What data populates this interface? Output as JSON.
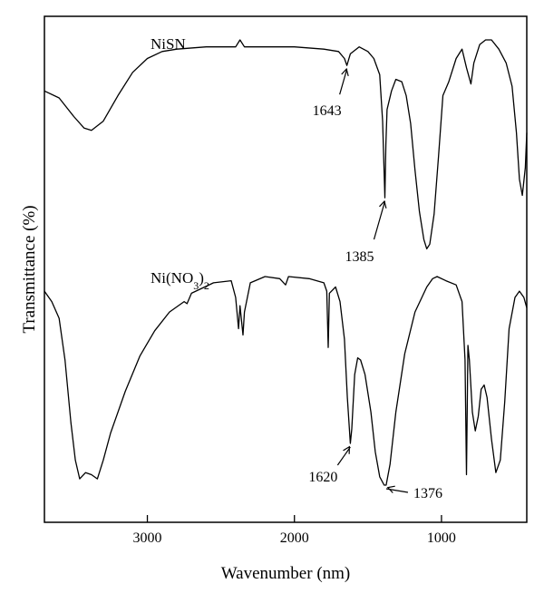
{
  "chart_data": {
    "type": "line",
    "xlabel": "Wavenumber (nm)",
    "ylabel": "Transmittance (%)",
    "xlim": [
      3700,
      420
    ],
    "x_reversed": true,
    "y_ticks_shown": false,
    "x_ticks": [
      3000,
      2000,
      1000
    ],
    "x_tick_labels": [
      "3000",
      "2000",
      "1000"
    ],
    "series": [
      {
        "name": "NiSN",
        "points": [
          [
            3700,
            0.78
          ],
          [
            3600,
            0.75
          ],
          [
            3500,
            0.67
          ],
          [
            3430,
            0.62
          ],
          [
            3380,
            0.61
          ],
          [
            3300,
            0.65
          ],
          [
            3200,
            0.76
          ],
          [
            3100,
            0.86
          ],
          [
            3000,
            0.92
          ],
          [
            2900,
            0.95
          ],
          [
            2800,
            0.96
          ],
          [
            2600,
            0.97
          ],
          [
            2400,
            0.97
          ],
          [
            2370,
            1.0
          ],
          [
            2340,
            0.97
          ],
          [
            2200,
            0.97
          ],
          [
            2000,
            0.97
          ],
          [
            1800,
            0.96
          ],
          [
            1700,
            0.95
          ],
          [
            1660,
            0.92
          ],
          [
            1643,
            0.89
          ],
          [
            1620,
            0.94
          ],
          [
            1560,
            0.97
          ],
          [
            1500,
            0.95
          ],
          [
            1460,
            0.92
          ],
          [
            1420,
            0.85
          ],
          [
            1400,
            0.65
          ],
          [
            1385,
            0.32
          ],
          [
            1378,
            0.55
          ],
          [
            1370,
            0.7
          ],
          [
            1340,
            0.78
          ],
          [
            1310,
            0.83
          ],
          [
            1270,
            0.82
          ],
          [
            1240,
            0.76
          ],
          [
            1210,
            0.64
          ],
          [
            1180,
            0.44
          ],
          [
            1150,
            0.26
          ],
          [
            1120,
            0.14
          ],
          [
            1100,
            0.1
          ],
          [
            1080,
            0.12
          ],
          [
            1050,
            0.25
          ],
          [
            1020,
            0.5
          ],
          [
            990,
            0.76
          ],
          [
            950,
            0.82
          ],
          [
            900,
            0.92
          ],
          [
            860,
            0.96
          ],
          [
            830,
            0.88
          ],
          [
            800,
            0.81
          ],
          [
            780,
            0.9
          ],
          [
            740,
            0.98
          ],
          [
            700,
            1.0
          ],
          [
            660,
            1.0
          ],
          [
            610,
            0.96
          ],
          [
            560,
            0.9
          ],
          [
            520,
            0.8
          ],
          [
            490,
            0.6
          ],
          [
            470,
            0.4
          ],
          [
            450,
            0.33
          ],
          [
            430,
            0.45
          ],
          [
            420,
            0.6
          ]
        ]
      },
      {
        "name": "Ni(NO3)2",
        "points": [
          [
            3700,
            0.93
          ],
          [
            3650,
            0.88
          ],
          [
            3600,
            0.8
          ],
          [
            3560,
            0.6
          ],
          [
            3520,
            0.3
          ],
          [
            3490,
            0.12
          ],
          [
            3460,
            0.03
          ],
          [
            3420,
            0.06
          ],
          [
            3380,
            0.05
          ],
          [
            3340,
            0.03
          ],
          [
            3300,
            0.12
          ],
          [
            3250,
            0.25
          ],
          [
            3150,
            0.45
          ],
          [
            3050,
            0.62
          ],
          [
            2950,
            0.74
          ],
          [
            2850,
            0.83
          ],
          [
            2750,
            0.88
          ],
          [
            2730,
            0.87
          ],
          [
            2700,
            0.92
          ],
          [
            2550,
            0.97
          ],
          [
            2430,
            0.98
          ],
          [
            2400,
            0.9
          ],
          [
            2380,
            0.75
          ],
          [
            2370,
            0.86
          ],
          [
            2350,
            0.72
          ],
          [
            2340,
            0.83
          ],
          [
            2300,
            0.97
          ],
          [
            2200,
            1.0
          ],
          [
            2100,
            0.99
          ],
          [
            2060,
            0.96
          ],
          [
            2040,
            1.0
          ],
          [
            1900,
            0.99
          ],
          [
            1800,
            0.97
          ],
          [
            1780,
            0.93
          ],
          [
            1770,
            0.66
          ],
          [
            1762,
            0.92
          ],
          [
            1720,
            0.95
          ],
          [
            1690,
            0.88
          ],
          [
            1660,
            0.7
          ],
          [
            1640,
            0.42
          ],
          [
            1620,
            0.2
          ],
          [
            1610,
            0.27
          ],
          [
            1590,
            0.53
          ],
          [
            1570,
            0.61
          ],
          [
            1550,
            0.6
          ],
          [
            1520,
            0.53
          ],
          [
            1480,
            0.35
          ],
          [
            1450,
            0.16
          ],
          [
            1420,
            0.04
          ],
          [
            1390,
            0.0
          ],
          [
            1376,
            0.0
          ],
          [
            1350,
            0.1
          ],
          [
            1310,
            0.35
          ],
          [
            1250,
            0.63
          ],
          [
            1180,
            0.83
          ],
          [
            1100,
            0.95
          ],
          [
            1060,
            0.99
          ],
          [
            1030,
            1.0
          ],
          [
            970,
            0.98
          ],
          [
            900,
            0.96
          ],
          [
            860,
            0.88
          ],
          [
            840,
            0.6
          ],
          [
            830,
            0.05
          ],
          [
            820,
            0.67
          ],
          [
            810,
            0.6
          ],
          [
            790,
            0.35
          ],
          [
            770,
            0.26
          ],
          [
            750,
            0.33
          ],
          [
            730,
            0.46
          ],
          [
            710,
            0.48
          ],
          [
            690,
            0.42
          ],
          [
            660,
            0.22
          ],
          [
            630,
            0.06
          ],
          [
            600,
            0.12
          ],
          [
            570,
            0.4
          ],
          [
            540,
            0.75
          ],
          [
            500,
            0.9
          ],
          [
            470,
            0.93
          ],
          [
            440,
            0.9
          ],
          [
            420,
            0.85
          ]
        ]
      }
    ],
    "annotations": [
      {
        "series": "NiSN",
        "label": "1643",
        "x": 1643
      },
      {
        "series": "NiSN",
        "label": "1385",
        "x": 1385
      },
      {
        "series": "Ni(NO3)2",
        "label": "1620",
        "x": 1620
      },
      {
        "series": "Ni(NO3)2",
        "label": "1376",
        "x": 1376
      }
    ]
  }
}
